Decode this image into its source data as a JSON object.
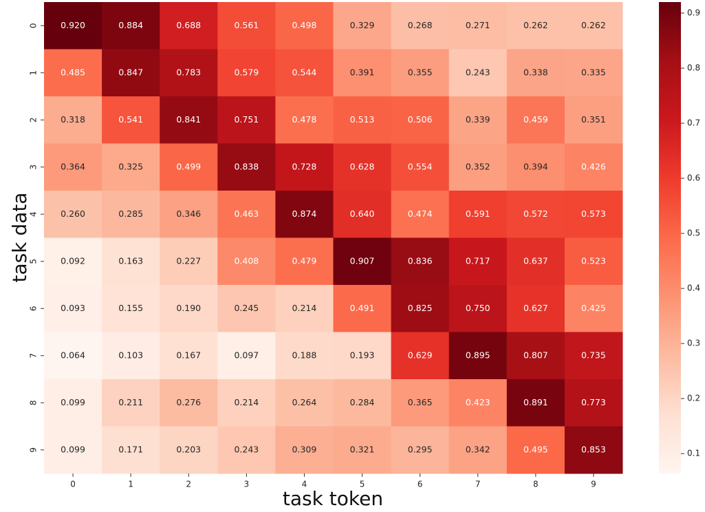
{
  "chart_data": {
    "type": "heatmap",
    "xlabel": "task token",
    "ylabel": "task data",
    "xcategories": [
      "0",
      "1",
      "2",
      "3",
      "4",
      "5",
      "6",
      "7",
      "8",
      "9"
    ],
    "ycategories": [
      "0",
      "1",
      "2",
      "3",
      "4",
      "5",
      "6",
      "7",
      "8",
      "9"
    ],
    "values": [
      [
        0.92,
        0.884,
        0.688,
        0.561,
        0.498,
        0.329,
        0.268,
        0.271,
        0.262,
        0.262
      ],
      [
        0.485,
        0.847,
        0.783,
        0.579,
        0.544,
        0.391,
        0.355,
        0.243,
        0.338,
        0.335
      ],
      [
        0.318,
        0.541,
        0.841,
        0.751,
        0.478,
        0.513,
        0.506,
        0.339,
        0.459,
        0.351
      ],
      [
        0.364,
        0.325,
        0.499,
        0.838,
        0.728,
        0.628,
        0.554,
        0.352,
        0.394,
        0.426
      ],
      [
        0.26,
        0.285,
        0.346,
        0.463,
        0.874,
        0.64,
        0.474,
        0.591,
        0.572,
        0.573
      ],
      [
        0.092,
        0.163,
        0.227,
        0.408,
        0.479,
        0.907,
        0.836,
        0.717,
        0.637,
        0.523
      ],
      [
        0.093,
        0.155,
        0.19,
        0.245,
        0.214,
        0.491,
        0.825,
        0.75,
        0.627,
        0.425
      ],
      [
        0.064,
        0.103,
        0.167,
        0.097,
        0.188,
        0.193,
        0.629,
        0.895,
        0.807,
        0.735
      ],
      [
        0.099,
        0.211,
        0.276,
        0.214,
        0.264,
        0.284,
        0.365,
        0.423,
        0.891,
        0.773
      ],
      [
        0.099,
        0.171,
        0.203,
        0.243,
        0.309,
        0.321,
        0.295,
        0.342,
        0.495,
        0.853
      ]
    ],
    "value_labels": [
      [
        "0.920",
        "0.884",
        "0.688",
        "0.561",
        "0.498",
        "0.329",
        "0.268",
        "0.271",
        "0.262",
        "0.262"
      ],
      [
        "0.485",
        "0.847",
        "0.783",
        "0.579",
        "0.544",
        "0.391",
        "0.355",
        "0.243",
        "0.338",
        "0.335"
      ],
      [
        "0.318",
        "0.541",
        "0.841",
        "0.751",
        "0.478",
        "0.513",
        "0.506",
        "0.339",
        "0.459",
        "0.351"
      ],
      [
        "0.364",
        "0.325",
        "0.499",
        "0.838",
        "0.728",
        "0.628",
        "0.554",
        "0.352",
        "0.394",
        "0.426"
      ],
      [
        "0.260",
        "0.285",
        "0.346",
        "0.463",
        "0.874",
        "0.640",
        "0.474",
        "0.591",
        "0.572",
        "0.573"
      ],
      [
        "0.092",
        "0.163",
        "0.227",
        "0.408",
        "0.479",
        "0.907",
        "0.836",
        "0.717",
        "0.637",
        "0.523"
      ],
      [
        "0.093",
        "0.155",
        "0.190",
        "0.245",
        "0.214",
        "0.491",
        "0.825",
        "0.750",
        "0.627",
        "0.425"
      ],
      [
        "0.064",
        "0.103",
        "0.167",
        "0.097",
        "0.188",
        "0.193",
        "0.629",
        "0.895",
        "0.807",
        "0.735"
      ],
      [
        "0.099",
        "0.211",
        "0.276",
        "0.214",
        "0.264",
        "0.284",
        "0.365",
        "0.423",
        "0.891",
        "0.773"
      ],
      [
        "0.099",
        "0.171",
        "0.203",
        "0.243",
        "0.309",
        "0.321",
        "0.295",
        "0.342",
        "0.495",
        "0.853"
      ]
    ],
    "zlim": [
      0.064,
      0.92
    ],
    "zticks": [
      0.1,
      0.2,
      0.3,
      0.4,
      0.5,
      0.6,
      0.7,
      0.8,
      0.9
    ],
    "colormap": [
      "#fff5f0",
      "#fee0d2",
      "#fcbba1",
      "#fc9272",
      "#fb6a4a",
      "#ef3b2c",
      "#cb181d",
      "#a50f15",
      "#67000d"
    ]
  }
}
